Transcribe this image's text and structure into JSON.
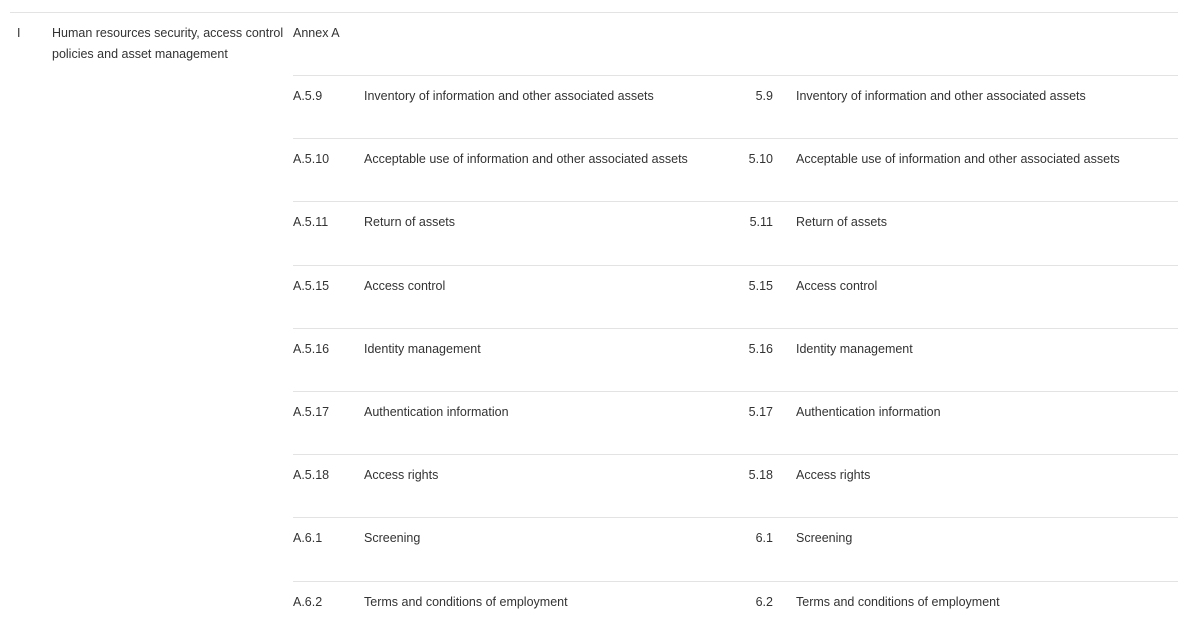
{
  "section": {
    "id": "I",
    "title": "Human resources security, access control policies and asset management",
    "annex": "Annex A"
  },
  "table": {
    "rows": [
      [
        "A.5.9",
        "Inventory of information and other associated assets",
        "5.9",
        "Inventory of information and other associated assets"
      ],
      [
        "A.5.10",
        "Acceptable use of information and other associated assets",
        "5.10",
        "Acceptable use of information and other associated assets"
      ],
      [
        "A.5.11",
        "Return of assets",
        "5.11",
        "Return of assets"
      ],
      [
        "A.5.15",
        "Access control",
        "5.15",
        "Access control"
      ],
      [
        "A.5.16",
        "Identity management",
        "5.16",
        "Identity management"
      ],
      [
        "A.5.17",
        "Authentication information",
        "5.17",
        "Authentication information"
      ],
      [
        "A.5.18",
        "Access rights",
        "5.18",
        "Access rights"
      ],
      [
        "A.6.1",
        "Screening",
        "6.1",
        "Screening"
      ],
      [
        "A.6.2",
        "Terms and conditions of employment",
        "6.2",
        "Terms and conditions of employment"
      ]
    ]
  }
}
